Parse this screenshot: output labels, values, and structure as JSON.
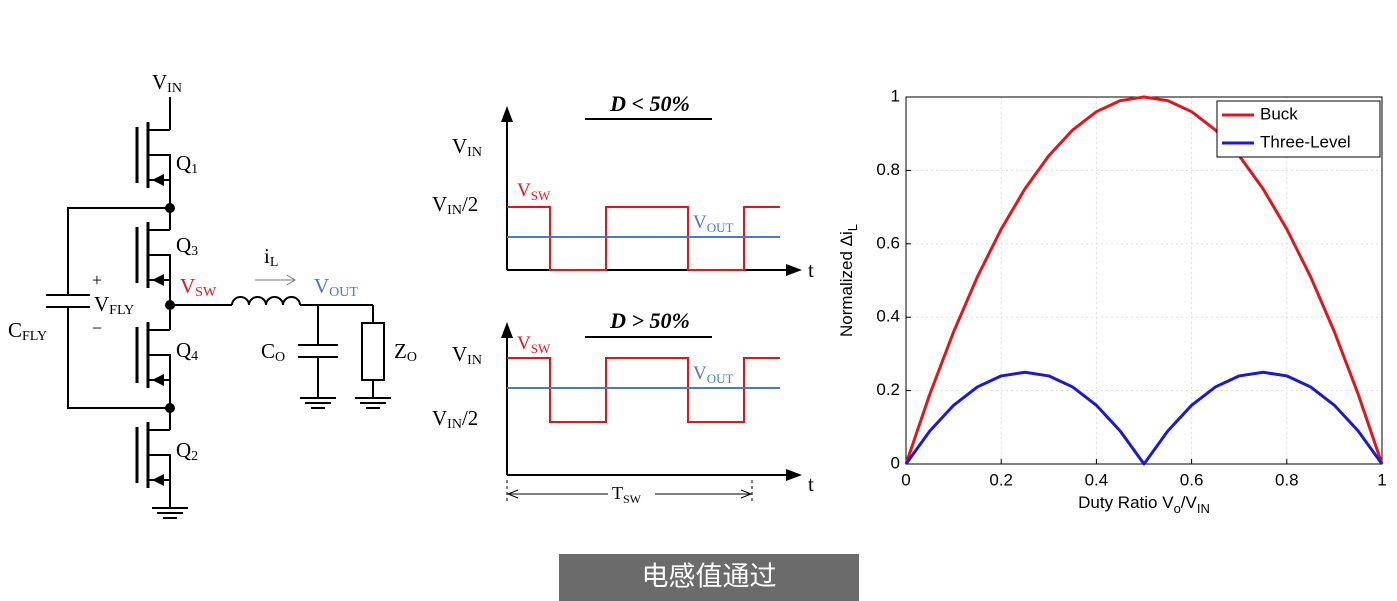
{
  "circuit": {
    "vin": {
      "main": "V",
      "sub": "IN"
    },
    "q1": {
      "main": "Q",
      "sub": "1"
    },
    "q3": {
      "main": "Q",
      "sub": "3"
    },
    "q4": {
      "main": "Q",
      "sub": "4"
    },
    "q2": {
      "main": "Q",
      "sub": "2"
    },
    "vsw": {
      "main": "V",
      "sub": "SW"
    },
    "il": {
      "main": "i",
      "sub": "L"
    },
    "vout": {
      "main": "V",
      "sub": "OUT"
    },
    "plus": "+",
    "vfly": {
      "main": "V",
      "sub": "FLY"
    },
    "minus": "−",
    "cfly": {
      "main": "C",
      "sub": "FLY"
    },
    "co": {
      "main": "C",
      "sub": "O"
    },
    "zo": {
      "main": "Z",
      "sub": "O"
    }
  },
  "waveforms": {
    "top": {
      "title": "D < 50%",
      "vin": {
        "main": "V",
        "sub": "IN"
      },
      "vhalf": {
        "main": "V",
        "sub": "IN",
        "tail": "/2"
      },
      "vsw": {
        "main": "V",
        "sub": "SW"
      },
      "vout": {
        "main": "V",
        "sub": "OUT"
      },
      "t": "t"
    },
    "bottom": {
      "title": "D > 50%",
      "vin": {
        "main": "V",
        "sub": "IN"
      },
      "vhalf": {
        "main": "V",
        "sub": "IN",
        "tail": "/2"
      },
      "vsw": {
        "main": "V",
        "sub": "SW"
      },
      "vout": {
        "main": "V",
        "sub": "OUT"
      },
      "t": "t",
      "tsw": {
        "main": "T",
        "sub": "SW"
      }
    }
  },
  "chart_data": {
    "type": "line",
    "xlabel": [
      "Duty Ratio V",
      "o",
      "/V",
      "IN"
    ],
    "ylabel": [
      "Normalized Δi",
      "L"
    ],
    "x": [
      0,
      0.05,
      0.1,
      0.15,
      0.2,
      0.25,
      0.3,
      0.35,
      0.4,
      0.45,
      0.5,
      0.55,
      0.6,
      0.65,
      0.7,
      0.75,
      0.8,
      0.85,
      0.9,
      0.95,
      1
    ],
    "series": [
      {
        "name": "Buck",
        "color": "#e0161c",
        "values": [
          0,
          0.19,
          0.36,
          0.51,
          0.64,
          0.75,
          0.84,
          0.91,
          0.96,
          0.99,
          1,
          0.99,
          0.96,
          0.91,
          0.84,
          0.75,
          0.64,
          0.51,
          0.36,
          0.19,
          0
        ]
      },
      {
        "name": "Three-Level",
        "color": "#1a1ad0",
        "values": [
          0,
          0.09,
          0.16,
          0.21,
          0.24,
          0.25,
          0.24,
          0.21,
          0.16,
          0.09,
          0,
          0.09,
          0.16,
          0.21,
          0.24,
          0.25,
          0.24,
          0.21,
          0.16,
          0.09,
          0
        ]
      }
    ],
    "xlim": [
      0,
      1
    ],
    "ylim": [
      0,
      1
    ],
    "xticks": [
      0,
      0.2,
      0.4,
      0.6,
      0.8,
      1
    ],
    "yticks": [
      0,
      0.2,
      0.4,
      0.6,
      0.8,
      1
    ],
    "grid": true,
    "legend": "upper-right"
  },
  "caption": "电感值通过"
}
